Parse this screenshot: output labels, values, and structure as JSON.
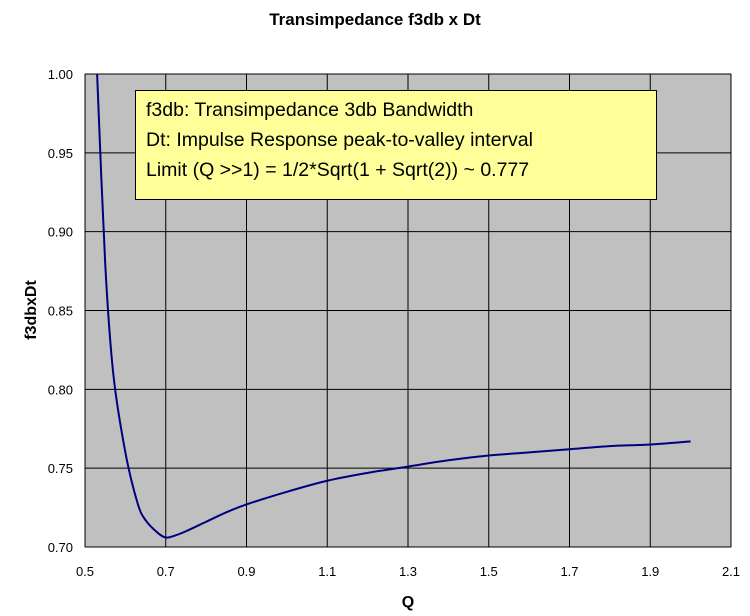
{
  "chart_data": {
    "type": "line",
    "title": "Transimpedance f3db x Dt",
    "xlabel": "Q",
    "ylabel": "f3dbxDt",
    "xlim": [
      0.5,
      2.1
    ],
    "ylim": [
      0.7,
      1.0
    ],
    "x_ticks": [
      "0.5",
      "0.7",
      "0.9",
      "1.1",
      "1.3",
      "1.5",
      "1.7",
      "1.9",
      "2.1"
    ],
    "y_ticks": [
      "1.00",
      "0.95",
      "0.90",
      "0.85",
      "0.80",
      "0.75",
      "0.70"
    ],
    "grid": true,
    "plot_background": "#c0c0c0",
    "line_color": "#000080",
    "series": [
      {
        "x": [
          0.53,
          0.55,
          0.57,
          0.6,
          0.63,
          0.65,
          0.68,
          0.7,
          0.72,
          0.75,
          0.8,
          0.85,
          0.9,
          1.0,
          1.1,
          1.2,
          1.3,
          1.4,
          1.5,
          1.6,
          1.7,
          1.8,
          1.9,
          2.0
        ],
        "y": [
          1.0,
          0.88,
          0.81,
          0.76,
          0.728,
          0.717,
          0.709,
          0.706,
          0.707,
          0.71,
          0.716,
          0.722,
          0.727,
          0.735,
          0.742,
          0.747,
          0.751,
          0.755,
          0.758,
          0.76,
          0.762,
          0.764,
          0.765,
          0.767
        ]
      }
    ],
    "annotations": [
      "f3db:  Transimpedance 3db Bandwidth",
      "Dt:  Impulse Response peak-to-valley interval",
      "Limit (Q >>1) = 1/2*Sqrt(1 + Sqrt(2)) ~ 0.777"
    ]
  }
}
